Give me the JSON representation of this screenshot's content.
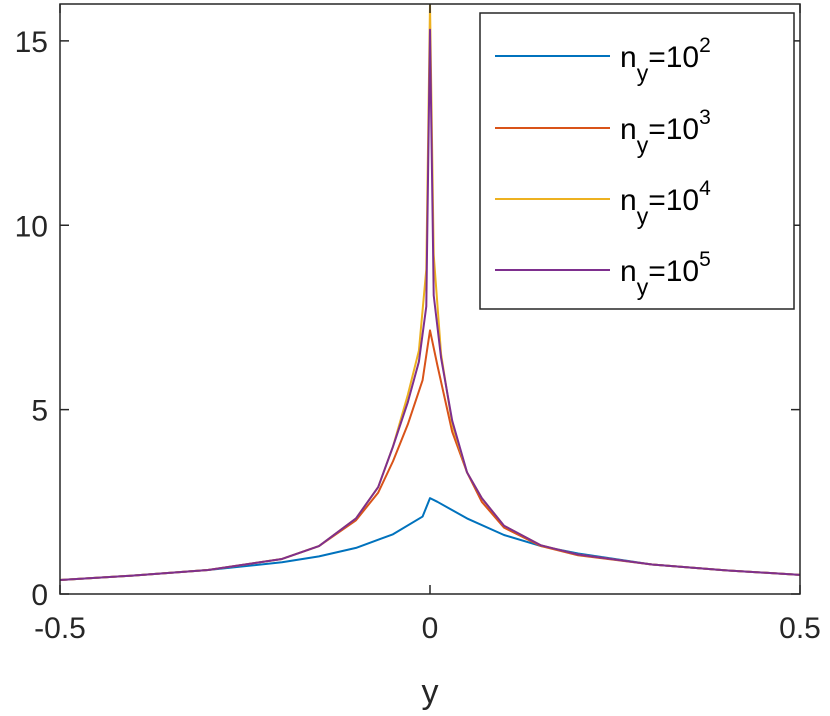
{
  "chart_data": {
    "type": "line",
    "title": "",
    "xlabel": "y",
    "ylabel": "",
    "xlim": [
      -0.5,
      0.5
    ],
    "ylim": [
      0,
      16
    ],
    "xticks": [
      -0.5,
      0,
      0.5
    ],
    "xtick_labels": [
      "-0.5",
      "0",
      "0.5"
    ],
    "yticks": [
      0,
      5,
      10,
      15
    ],
    "ytick_labels": [
      "0",
      "5",
      "10",
      "15"
    ],
    "grid": false,
    "legend_position": "top-right",
    "series": [
      {
        "name": "n_y=10^2",
        "legend": {
          "base": "n",
          "sub": "y",
          "eq": "=10",
          "sup": "2"
        },
        "color": "#0072BD",
        "x": [
          -0.5,
          -0.4,
          -0.3,
          -0.2,
          -0.15,
          -0.1,
          -0.05,
          -0.01,
          0.0,
          0.01,
          0.05,
          0.1,
          0.15,
          0.2,
          0.3,
          0.4,
          0.5
        ],
        "y": [
          0.38,
          0.5,
          0.65,
          0.86,
          1.02,
          1.25,
          1.62,
          2.1,
          2.6,
          2.5,
          2.05,
          1.6,
          1.3,
          1.1,
          0.8,
          0.64,
          0.52
        ]
      },
      {
        "name": "n_y=10^3",
        "legend": {
          "base": "n",
          "sub": "y",
          "eq": "=10",
          "sup": "3"
        },
        "color": "#D95319",
        "x": [
          -0.5,
          -0.4,
          -0.3,
          -0.2,
          -0.15,
          -0.1,
          -0.07,
          -0.05,
          -0.03,
          -0.01,
          0.0,
          0.01,
          0.03,
          0.05,
          0.07,
          0.1,
          0.15,
          0.2,
          0.3,
          0.4,
          0.5
        ],
        "y": [
          0.38,
          0.5,
          0.65,
          0.95,
          1.3,
          2.0,
          2.75,
          3.6,
          4.6,
          5.8,
          7.15,
          6.2,
          4.4,
          3.3,
          2.5,
          1.8,
          1.3,
          1.05,
          0.8,
          0.64,
          0.52
        ]
      },
      {
        "name": "n_y=10^4",
        "legend": {
          "base": "n",
          "sub": "y",
          "eq": "=10",
          "sup": "4"
        },
        "color": "#EDB120",
        "x": [
          -0.5,
          -0.4,
          -0.3,
          -0.2,
          -0.15,
          -0.1,
          -0.07,
          -0.05,
          -0.03,
          -0.015,
          -0.005,
          0.0,
          0.005,
          0.015,
          0.03,
          0.05,
          0.07,
          0.1,
          0.15,
          0.2,
          0.3,
          0.4,
          0.5
        ],
        "y": [
          0.38,
          0.5,
          0.65,
          0.95,
          1.3,
          2.05,
          2.9,
          4.0,
          5.4,
          6.6,
          8.8,
          16.0,
          9.2,
          6.5,
          4.6,
          3.3,
          2.6,
          1.85,
          1.32,
          1.07,
          0.8,
          0.64,
          0.52
        ]
      },
      {
        "name": "n_y=10^5",
        "legend": {
          "base": "n",
          "sub": "y",
          "eq": "=10",
          "sup": "5"
        },
        "color": "#7E2F8E",
        "x": [
          -0.5,
          -0.4,
          -0.3,
          -0.2,
          -0.15,
          -0.1,
          -0.07,
          -0.05,
          -0.03,
          -0.015,
          -0.005,
          0.0,
          0.005,
          0.015,
          0.03,
          0.05,
          0.07,
          0.1,
          0.15,
          0.2,
          0.3,
          0.4,
          0.5
        ],
        "y": [
          0.38,
          0.5,
          0.65,
          0.95,
          1.3,
          2.05,
          2.9,
          4.0,
          5.2,
          6.3,
          7.8,
          15.3,
          8.1,
          6.4,
          4.7,
          3.3,
          2.6,
          1.85,
          1.32,
          1.07,
          0.8,
          0.64,
          0.52
        ]
      }
    ]
  }
}
